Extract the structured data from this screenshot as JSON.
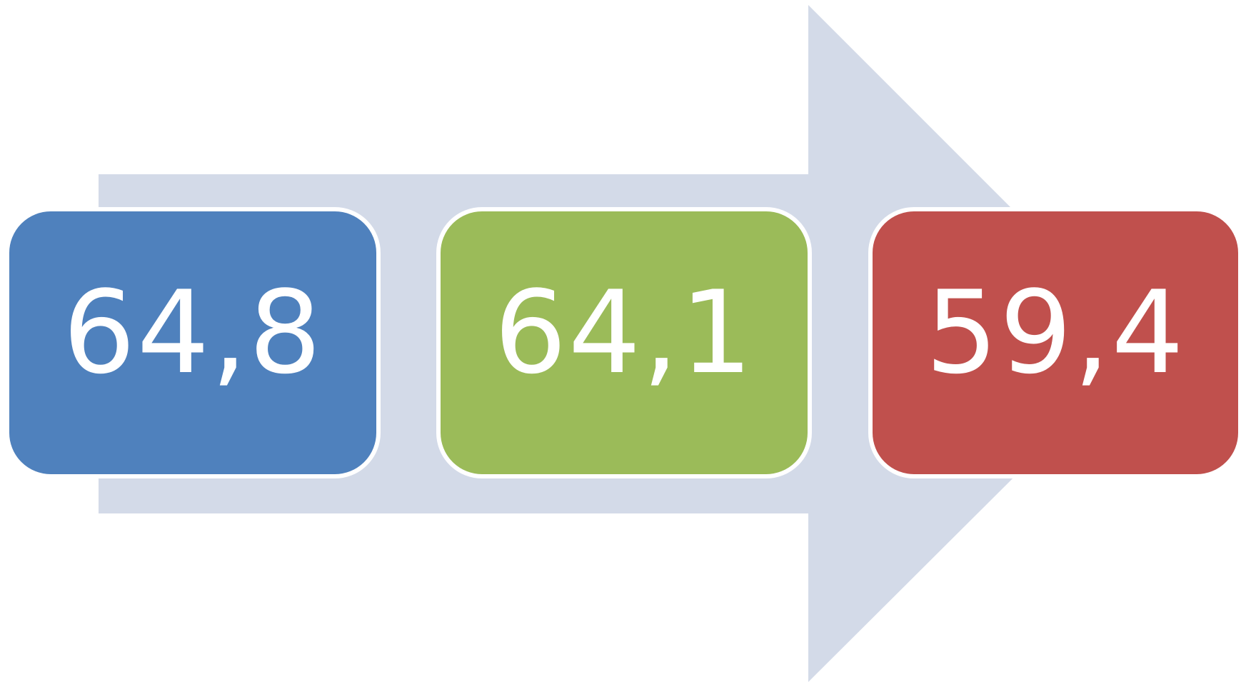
{
  "diagram": {
    "arrow_color": "#d3dae8",
    "boxes": [
      {
        "value": "64,8",
        "color": "#4f81bd"
      },
      {
        "value": "64,1",
        "color": "#9bbb59"
      },
      {
        "value": "59,4",
        "color": "#c0504d"
      }
    ]
  }
}
